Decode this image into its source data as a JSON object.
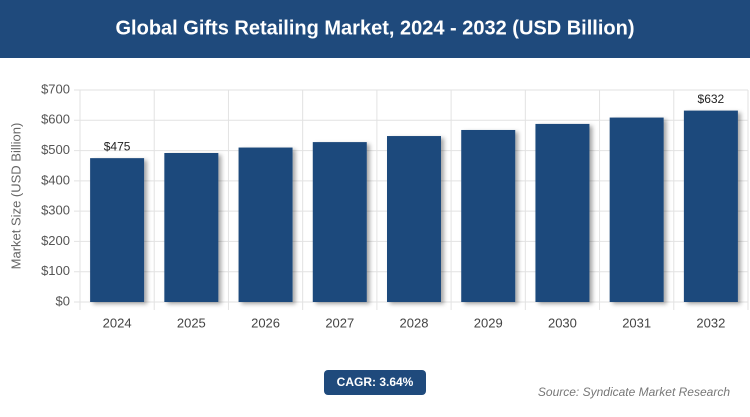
{
  "chart_data": {
    "type": "bar",
    "title": "Global Gifts Retailing Market, 2024 - 2032 (USD Billion)",
    "y_label": "Market Size (USD Billion)",
    "categories": [
      "2024",
      "2025",
      "2026",
      "2027",
      "2028",
      "2029",
      "2030",
      "2031",
      "2032"
    ],
    "values": [
      475,
      492,
      510,
      528,
      548,
      568,
      588,
      609,
      632
    ],
    "value_labels": [
      "$475",
      null,
      null,
      null,
      null,
      null,
      null,
      null,
      "$632"
    ],
    "color": "#1f4a7c",
    "ylim": [
      0,
      700
    ],
    "yticks": [
      {
        "value": 0,
        "label": "$0"
      },
      {
        "value": 100,
        "label": "$100"
      },
      {
        "value": 200,
        "label": "$200"
      },
      {
        "value": 300,
        "label": "$300"
      },
      {
        "value": 400,
        "label": "$400"
      },
      {
        "value": 500,
        "label": "$500"
      },
      {
        "value": 600,
        "label": "$600"
      },
      {
        "value": 700,
        "label": "$700"
      }
    ],
    "grid": true,
    "annotation": "CAGR: 3.64%",
    "source": "Source: Syndicate Market Research"
  }
}
